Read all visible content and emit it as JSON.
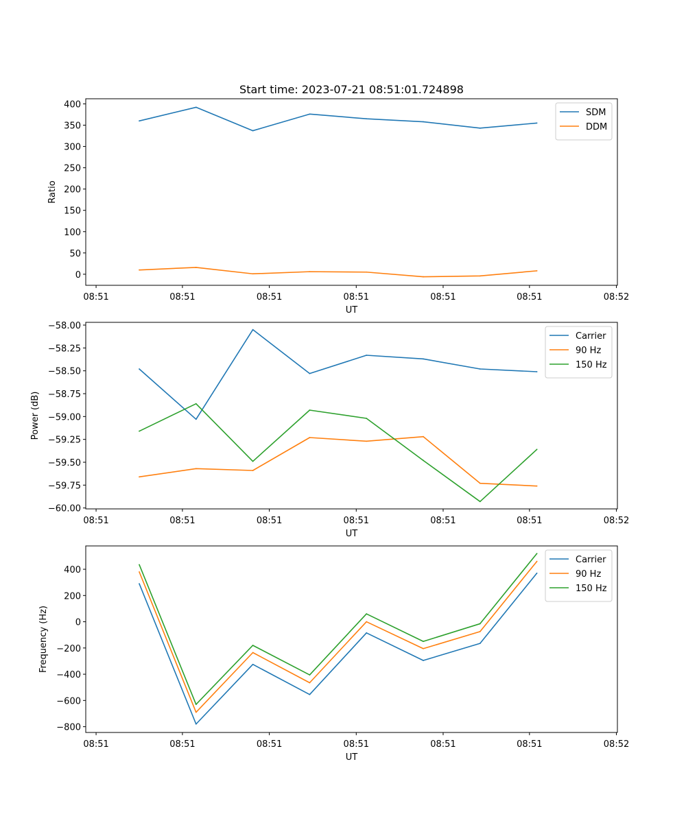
{
  "chart_data": [
    {
      "type": "line",
      "title": "Start time: 2023-07-21 08:51:01.724898",
      "xlabel": "UT",
      "ylabel": "Ratio",
      "xticks": [
        "08:51",
        "08:51",
        "08:51",
        "08:51",
        "08:51",
        "08:51",
        "08:52"
      ],
      "ylim": [
        -26,
        412
      ],
      "yticks": [
        0,
        50,
        100,
        150,
        200,
        250,
        300,
        350,
        400
      ],
      "ytick_labels": [
        "0",
        "50",
        "100",
        "150",
        "200",
        "250",
        "300",
        "350",
        "400"
      ],
      "legend_position": "top-right",
      "series": [
        {
          "name": "SDM",
          "color": "#1f77b4",
          "values": [
            360,
            392,
            337,
            376,
            365,
            358,
            343,
            355
          ]
        },
        {
          "name": "DDM",
          "color": "#ff7f0e",
          "values": [
            10,
            16,
            1,
            6,
            5,
            -6,
            -4,
            8
          ]
        }
      ]
    },
    {
      "type": "line",
      "title": "",
      "xlabel": "UT",
      "ylabel": "Power (dB)",
      "xticks": [
        "08:51",
        "08:51",
        "08:51",
        "08:51",
        "08:51",
        "08:51",
        "08:52"
      ],
      "ylim": [
        -60.01,
        -57.97
      ],
      "yticks": [
        -60.0,
        -59.75,
        -59.5,
        -59.25,
        -59.0,
        -58.75,
        -58.5,
        -58.25,
        -58.0
      ],
      "ytick_labels": [
        "−60.00",
        "−59.75",
        "−59.50",
        "−59.25",
        "−59.00",
        "−58.75",
        "−58.50",
        "−58.25",
        "−58.00"
      ],
      "legend_position": "top-right",
      "series": [
        {
          "name": "Carrier",
          "color": "#1f77b4",
          "values": [
            -58.48,
            -59.03,
            -58.05,
            -58.53,
            -58.33,
            -58.37,
            -58.48,
            -58.51
          ]
        },
        {
          "name": "90 Hz",
          "color": "#ff7f0e",
          "values": [
            -59.66,
            -59.57,
            -59.59,
            -59.23,
            -59.27,
            -59.22,
            -59.73,
            -59.76
          ]
        },
        {
          "name": "150 Hz",
          "color": "#2ca02c",
          "values": [
            -59.16,
            -58.86,
            -59.49,
            -58.93,
            -59.02,
            -59.48,
            -59.93,
            -59.36
          ]
        }
      ]
    },
    {
      "type": "line",
      "title": "",
      "xlabel": "UT",
      "ylabel": "Frequency (Hz)",
      "xticks": [
        "08:51",
        "08:51",
        "08:51",
        "08:51",
        "08:51",
        "08:51",
        "08:52"
      ],
      "ylim": [
        -844,
        578
      ],
      "yticks": [
        -800,
        -600,
        -400,
        -200,
        0,
        200,
        400
      ],
      "ytick_labels": [
        "−800",
        "−600",
        "−400",
        "−200",
        "0",
        "200",
        "400"
      ],
      "legend_position": "top-right",
      "series": [
        {
          "name": "Carrier",
          "color": "#1f77b4",
          "values": [
            290,
            -780,
            -325,
            -555,
            -85,
            -295,
            -165,
            370
          ]
        },
        {
          "name": "90 Hz",
          "color": "#ff7f0e",
          "values": [
            380,
            -690,
            -235,
            -465,
            0,
            -205,
            -75,
            460
          ]
        },
        {
          "name": "150 Hz",
          "color": "#2ca02c",
          "values": [
            435,
            -630,
            -180,
            -405,
            60,
            -150,
            -15,
            520
          ]
        }
      ]
    }
  ]
}
